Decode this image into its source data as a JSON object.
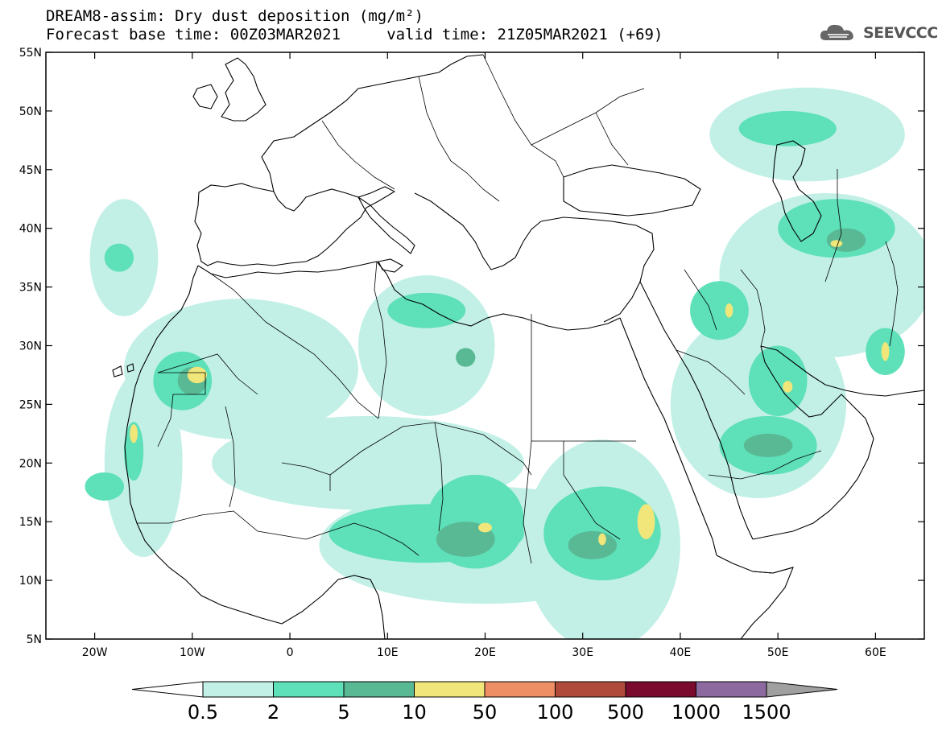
{
  "title": {
    "line1": "DREAM8-assim: Dry dust deposition (mg/m²)",
    "line2": "Forecast base time: 00Z03MAR2021     valid time: 21Z05MAR2021 (+69)"
  },
  "logo": {
    "text": "SEEVCCC",
    "icon": "cloud-logo-icon"
  },
  "map": {
    "lon_range": [
      -25,
      65
    ],
    "lat_range": [
      5,
      55
    ],
    "lat_ticks": [
      {
        "value": 55,
        "label": "55N"
      },
      {
        "value": 50,
        "label": "50N"
      },
      {
        "value": 45,
        "label": "45N"
      },
      {
        "value": 40,
        "label": "40N"
      },
      {
        "value": 35,
        "label": "35N"
      },
      {
        "value": 30,
        "label": "30N"
      },
      {
        "value": 25,
        "label": "25N"
      },
      {
        "value": 20,
        "label": "20N"
      },
      {
        "value": 15,
        "label": "15N"
      },
      {
        "value": 10,
        "label": "10N"
      },
      {
        "value": 5,
        "label": "5N"
      }
    ],
    "lon_ticks": [
      {
        "value": -20,
        "label": "20W"
      },
      {
        "value": -10,
        "label": "10W"
      },
      {
        "value": 0,
        "label": "0"
      },
      {
        "value": 10,
        "label": "10E"
      },
      {
        "value": 20,
        "label": "20E"
      },
      {
        "value": 30,
        "label": "30E"
      },
      {
        "value": 40,
        "label": "40E"
      },
      {
        "value": 50,
        "label": "50E"
      },
      {
        "value": 60,
        "label": "60E"
      }
    ]
  },
  "colorbar": {
    "colors": [
      "#c2f0e6",
      "#5ee0b9",
      "#5ab995",
      "#f0e67a",
      "#ed8e65",
      "#b04b3b",
      "#7b0b2e",
      "#8c6aa0",
      "#a0a0a0"
    ],
    "labels": [
      "0.5",
      "2",
      "5",
      "10",
      "50",
      "100",
      "500",
      "1000",
      "1500"
    ]
  },
  "dust_regions": [
    {
      "level": 1,
      "center": [
        -17,
        37.5
      ],
      "radius": [
        3.5,
        5
      ]
    },
    {
      "level": 2,
      "center": [
        -17.5,
        37.5
      ],
      "radius": [
        1.5,
        1.2
      ]
    },
    {
      "level": 1,
      "center": [
        -5,
        28
      ],
      "radius": [
        12,
        6
      ]
    },
    {
      "level": 1,
      "center": [
        -15,
        20
      ],
      "radius": [
        4,
        8
      ]
    },
    {
      "level": 2,
      "center": [
        -11,
        27
      ],
      "radius": [
        3,
        2.5
      ]
    },
    {
      "level": 3,
      "center": [
        -10,
        27
      ],
      "radius": [
        1.5,
        1.2
      ]
    },
    {
      "level": 4,
      "center": [
        -9.5,
        27.5
      ],
      "radius": [
        1,
        0.7
      ]
    },
    {
      "level": 2,
      "center": [
        -16,
        21
      ],
      "radius": [
        1,
        2.5
      ]
    },
    {
      "level": 4,
      "center": [
        -16,
        22.5
      ],
      "radius": [
        0.4,
        0.8
      ]
    },
    {
      "level": 2,
      "center": [
        -19,
        18
      ],
      "radius": [
        2,
        1.2
      ]
    },
    {
      "level": 1,
      "center": [
        14,
        30
      ],
      "radius": [
        7,
        6
      ]
    },
    {
      "level": 2,
      "center": [
        14,
        33
      ],
      "radius": [
        4,
        1.5
      ]
    },
    {
      "level": 3,
      "center": [
        18,
        29
      ],
      "radius": [
        1,
        0.8
      ]
    },
    {
      "level": 1,
      "center": [
        8,
        20
      ],
      "radius": [
        16,
        4
      ]
    },
    {
      "level": 1,
      "center": [
        20,
        13
      ],
      "radius": [
        17,
        5
      ]
    },
    {
      "level": 2,
      "center": [
        14,
        14
      ],
      "radius": [
        10,
        2.5
      ]
    },
    {
      "level": 2,
      "center": [
        19,
        15
      ],
      "radius": [
        5,
        4
      ]
    },
    {
      "level": 3,
      "center": [
        18,
        13.5
      ],
      "radius": [
        3,
        1.5
      ]
    },
    {
      "level": 4,
      "center": [
        20,
        14.5
      ],
      "radius": [
        0.7,
        0.4
      ]
    },
    {
      "level": 1,
      "center": [
        32,
        13
      ],
      "radius": [
        8,
        9
      ]
    },
    {
      "level": 2,
      "center": [
        32,
        14
      ],
      "radius": [
        6,
        4
      ]
    },
    {
      "level": 3,
      "center": [
        31,
        13
      ],
      "radius": [
        2.5,
        1.2
      ]
    },
    {
      "level": 4,
      "center": [
        36.5,
        15
      ],
      "radius": [
        0.9,
        1.5
      ]
    },
    {
      "level": 4,
      "center": [
        32,
        13.5
      ],
      "radius": [
        0.4,
        0.5
      ]
    },
    {
      "level": 1,
      "center": [
        48,
        25
      ],
      "radius": [
        9,
        8
      ]
    },
    {
      "level": 2,
      "center": [
        49,
        21.5
      ],
      "radius": [
        5,
        2.5
      ]
    },
    {
      "level": 3,
      "center": [
        49,
        21.5
      ],
      "radius": [
        2.5,
        1
      ]
    },
    {
      "level": 1,
      "center": [
        55,
        36
      ],
      "radius": [
        11,
        7
      ]
    },
    {
      "level": 2,
      "center": [
        56,
        40
      ],
      "radius": [
        6,
        2.5
      ]
    },
    {
      "level": 3,
      "center": [
        57,
        39
      ],
      "radius": [
        2,
        1
      ]
    },
    {
      "level": 4,
      "center": [
        56,
        38.7
      ],
      "radius": [
        0.6,
        0.3
      ]
    },
    {
      "level": 2,
      "center": [
        50,
        27
      ],
      "radius": [
        3,
        3
      ]
    },
    {
      "level": 4,
      "center": [
        51,
        26.5
      ],
      "radius": [
        0.5,
        0.5
      ]
    },
    {
      "level": 2,
      "center": [
        61,
        29.5
      ],
      "radius": [
        2,
        2
      ]
    },
    {
      "level": 4,
      "center": [
        61,
        29.5
      ],
      "radius": [
        0.4,
        0.8
      ]
    },
    {
      "level": 2,
      "center": [
        44,
        33
      ],
      "radius": [
        3,
        2.5
      ]
    },
    {
      "level": 4,
      "center": [
        45,
        33
      ],
      "radius": [
        0.4,
        0.6
      ]
    },
    {
      "level": 1,
      "center": [
        53,
        48
      ],
      "radius": [
        10,
        4
      ]
    },
    {
      "level": 2,
      "center": [
        51,
        48.5
      ],
      "radius": [
        5,
        1.5
      ]
    }
  ]
}
